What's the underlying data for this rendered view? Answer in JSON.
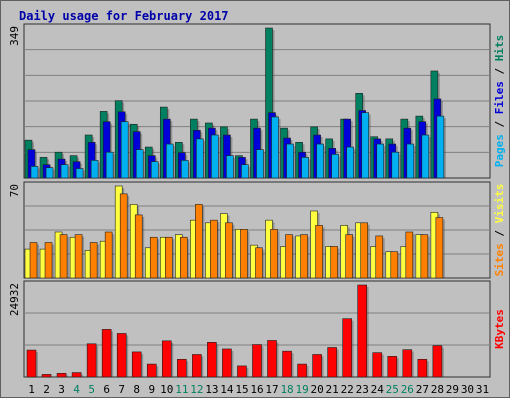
{
  "title": "Daily usage for February 2017",
  "colors": {
    "background": "#c0c0c0",
    "title": "#0000aa",
    "pages": "#00b0f0",
    "files": "#0000d8",
    "hits": "#008060",
    "visits": "#ffff40",
    "sites": "#ff8000",
    "kbytes": "#ff0000",
    "weekend_label": "#008060"
  },
  "chart_data": [
    {
      "type": "bar",
      "name": "hits-files-pages",
      "max_label": "349",
      "legend": [
        "Pages",
        "Files",
        "Hits"
      ],
      "categories": [
        "1",
        "2",
        "3",
        "4",
        "5",
        "6",
        "7",
        "8",
        "9",
        "10",
        "11",
        "12",
        "13",
        "14",
        "15",
        "16",
        "17",
        "18",
        "19",
        "20",
        "21",
        "22",
        "23",
        "24",
        "25",
        "26",
        "27",
        "28",
        "29",
        "30",
        "31"
      ],
      "series": [
        {
          "name": "Hits",
          "values": [
            88,
            48,
            60,
            52,
            100,
            155,
            180,
            125,
            72,
            165,
            83,
            137,
            128,
            119,
            52,
            137,
            349,
            116,
            83,
            119,
            91,
            137,
            197,
            96,
            91,
            137,
            144,
            249,
            0,
            0,
            0
          ]
        },
        {
          "name": "Files",
          "values": [
            66,
            31,
            44,
            38,
            83,
            131,
            154,
            108,
            52,
            137,
            59,
            111,
            116,
            100,
            48,
            116,
            152,
            93,
            60,
            100,
            69,
            137,
            157,
            91,
            79,
            116,
            131,
            184,
            0,
            0,
            0
          ]
        },
        {
          "name": "Pages",
          "values": [
            27,
            24,
            31,
            22,
            41,
            60,
            131,
            66,
            38,
            79,
            41,
            91,
            100,
            52,
            31,
            66,
            142,
            79,
            48,
            79,
            55,
            72,
            152,
            79,
            60,
            79,
            100,
            144,
            0,
            0,
            0
          ]
        }
      ],
      "ymax": 349
    },
    {
      "type": "bar",
      "name": "visits-sites",
      "max_label": "70",
      "legend": [
        "Sites",
        "Visits"
      ],
      "categories": [
        "1",
        "2",
        "3",
        "4",
        "5",
        "6",
        "7",
        "8",
        "9",
        "10",
        "11",
        "12",
        "13",
        "14",
        "15",
        "16",
        "17",
        "18",
        "19",
        "20",
        "21",
        "22",
        "23",
        "24",
        "25",
        "26",
        "27",
        "28",
        "29",
        "30",
        "31"
      ],
      "series": [
        {
          "name": "Visits",
          "values": [
            22,
            22,
            35,
            31,
            21,
            28,
            70,
            56,
            23,
            31,
            33,
            44,
            42,
            49,
            37,
            25,
            44,
            24,
            32,
            51,
            24,
            40,
            42,
            24,
            20,
            24,
            33,
            50,
            0,
            0,
            0
          ]
        },
        {
          "name": "Sites",
          "values": [
            27,
            27,
            33,
            33,
            27,
            35,
            64,
            48,
            31,
            31,
            31,
            56,
            44,
            42,
            37,
            23,
            37,
            33,
            33,
            40,
            24,
            33,
            42,
            32,
            20,
            35,
            33,
            46,
            0,
            0,
            0
          ]
        }
      ],
      "ymax": 70
    },
    {
      "type": "bar",
      "name": "kbytes",
      "max_label": "24932",
      "legend": [
        "KBytes"
      ],
      "categories": [
        "1",
        "2",
        "3",
        "4",
        "5",
        "6",
        "7",
        "8",
        "9",
        "10",
        "11",
        "12",
        "13",
        "14",
        "15",
        "16",
        "17",
        "18",
        "19",
        "20",
        "21",
        "22",
        "23",
        "24",
        "25",
        "26",
        "27",
        "28",
        "29",
        "30",
        "31"
      ],
      "series": [
        {
          "name": "KBytes",
          "values": [
            7300,
            700,
            1000,
            1200,
            9000,
            12900,
            11800,
            6800,
            3500,
            9800,
            4800,
            6100,
            9400,
            7600,
            3000,
            8800,
            9900,
            7000,
            3500,
            6100,
            8000,
            15800,
            24932,
            6600,
            5600,
            7400,
            4800,
            8500,
            0,
            0,
            0
          ]
        }
      ],
      "ymax": 24932
    }
  ],
  "x_labels": [
    "1",
    "2",
    "3",
    "4",
    "5",
    "6",
    "7",
    "8",
    "9",
    "10",
    "11",
    "12",
    "13",
    "14",
    "15",
    "16",
    "17",
    "18",
    "19",
    "20",
    "21",
    "22",
    "23",
    "24",
    "25",
    "26",
    "27",
    "28",
    "29",
    "30",
    "31"
  ],
  "weekend_days": [
    4,
    5,
    11,
    12,
    18,
    19,
    25,
    26
  ]
}
